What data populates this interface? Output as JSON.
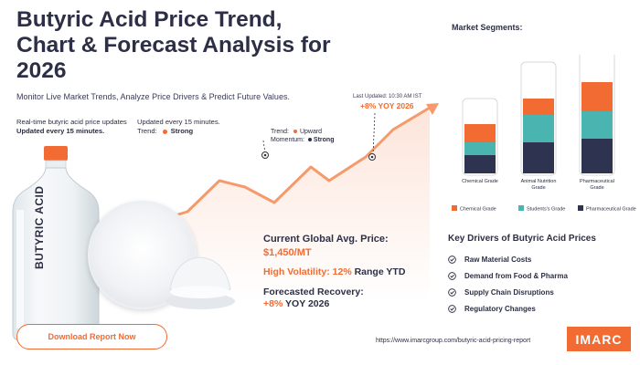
{
  "header": {
    "title": "Butyric Acid Price Trend, Chart & Forecast Analysis for 2026",
    "subtitle": "Monitor Live Market Trends, Analyze Price Drivers & Predict Future Values."
  },
  "updates": {
    "realtime_line1": "Real-time butyric acid price updates",
    "realtime_line2": "Updated every 15 minutes.",
    "updated_every": "Updated every 15 minutes.",
    "trend_label": "Trend:",
    "trend_value": "Strong"
  },
  "trend_box": {
    "trend_line": "Trend:",
    "trend_dir": "Upward",
    "momentum_label": "Momentum:",
    "momentum_value": "Strong"
  },
  "last_updated": {
    "text": "Last Updated: 10:30 AM IST",
    "yoy": "+8% YOY 2026"
  },
  "bottle_label": "BUTYRIC ACID",
  "price": {
    "label": "Current Global Avg. Price:",
    "value": "$1,450/MT",
    "volatility_orange": "High Volatility: 12%",
    "volatility_dark": "Range YTD",
    "recovery_label": "Forecasted Recovery:",
    "recovery_orange": "+8%",
    "recovery_dark": "YOY 2026"
  },
  "segments": {
    "title": "Market Segments:",
    "categories": [
      "Chemical Grade",
      "Animal Nutrition Grade",
      "Pharmaceutical Grade"
    ],
    "legend": [
      "Chemical Grade",
      "Students's Grade",
      "Pharmaceutical Grade"
    ],
    "colors": {
      "orange": "#f26b32",
      "teal": "#4ab5b0",
      "navy": "#2e3350"
    }
  },
  "chart_data": {
    "type": "bar",
    "categories": [
      "Chemical Grade",
      "Animal Nutrition Grade",
      "Pharmaceutical Grade"
    ],
    "series": [
      {
        "name": "Pharmaceutical Grade",
        "values": [
          20,
          34,
          38
        ]
      },
      {
        "name": "Students's Grade",
        "values": [
          14,
          30,
          30
        ]
      },
      {
        "name": "Chemical Grade",
        "values": [
          20,
          18,
          32
        ]
      }
    ]
  },
  "drivers": {
    "title": "Key Drivers of Butyric Acid Prices",
    "items": [
      "Raw Material Costs",
      "Demand from Food & Pharma",
      "Supply Chain Disruptions",
      "Regulatory Changes"
    ]
  },
  "footer": {
    "button": "Download Report Now",
    "url": "https://www.imarcgroup.com/butyric-acid-pricing-report",
    "logo": "IMARC"
  }
}
